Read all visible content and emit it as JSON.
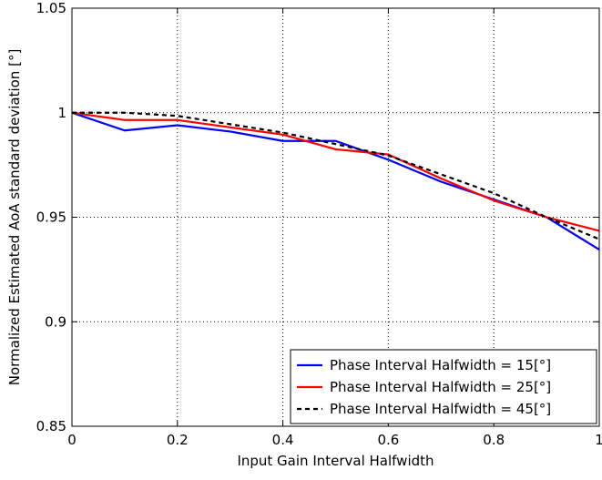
{
  "chart_data": {
    "type": "line",
    "title": "",
    "xlabel": "Input Gain Interval Halfwidth",
    "ylabel": "Normalized Estimated AoA standard deviation [°]",
    "xlim": [
      0,
      1
    ],
    "ylim": [
      0.85,
      1.05
    ],
    "x_ticks": [
      0,
      0.2,
      0.4,
      0.6,
      0.8,
      1
    ],
    "x_tick_labels": [
      "0",
      "0.2",
      "0.4",
      "0.6",
      "0.8",
      "1"
    ],
    "y_ticks": [
      0.85,
      0.9,
      0.95,
      1,
      1.05
    ],
    "y_tick_labels": [
      "0.85",
      "0.9",
      "0.95",
      "1",
      "1.05"
    ],
    "grid": true,
    "legend_position": "bottom-right",
    "x": [
      0,
      0.1,
      0.2,
      0.3,
      0.4,
      0.5,
      0.6,
      0.7,
      0.8,
      0.9,
      1.0
    ],
    "series": [
      {
        "name": "Phase Interval Halfwidth = 15[°]",
        "color": "#0000ff",
        "style": "solid",
        "values": [
          1.0,
          0.9915,
          0.994,
          0.991,
          0.9865,
          0.9865,
          0.9775,
          0.967,
          0.9585,
          0.95,
          0.9345
        ]
      },
      {
        "name": "Phase Interval Halfwidth = 25[°]",
        "color": "#ff0000",
        "style": "solid",
        "values": [
          1.0,
          0.9965,
          0.9965,
          0.993,
          0.9895,
          0.9825,
          0.98,
          0.9685,
          0.958,
          0.95,
          0.9435
        ]
      },
      {
        "name": "Phase Interval Halfwidth = 45[°]",
        "color": "#000000",
        "style": "dashed",
        "values": [
          1.0,
          1.0,
          0.9985,
          0.9945,
          0.9905,
          0.985,
          0.9795,
          0.9705,
          0.9615,
          0.95,
          0.9395
        ]
      }
    ]
  }
}
